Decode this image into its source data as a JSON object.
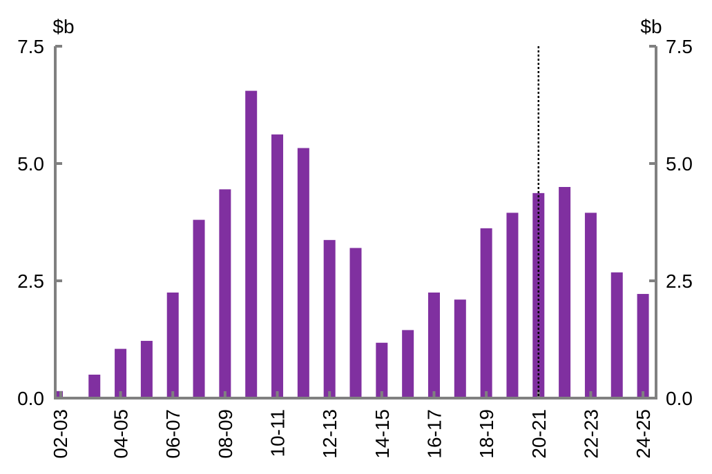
{
  "chart_data": {
    "type": "bar",
    "left_unit": "$b",
    "right_unit": "$b",
    "y_ticks": [
      "0.0",
      "2.5",
      "5.0",
      "7.5"
    ],
    "ylim": [
      0,
      7.5
    ],
    "categories": [
      "02-03",
      "03-04",
      "04-05",
      "05-06",
      "06-07",
      "07-08",
      "08-09",
      "09-10",
      "10-11",
      "11-12",
      "12-13",
      "13-14",
      "14-15",
      "15-16",
      "16-17",
      "17-18",
      "18-19",
      "19-20",
      "20-21",
      "21-22",
      "22-23",
      "23-24",
      "24-25"
    ],
    "x_tick_labels": [
      "02-03",
      "04-05",
      "06-07",
      "08-09",
      "10-11",
      "12-13",
      "14-15",
      "16-17",
      "18-19",
      "20-21",
      "22-23",
      "24-25"
    ],
    "values": [
      0.15,
      0.5,
      1.05,
      1.22,
      2.25,
      3.8,
      4.45,
      6.55,
      5.62,
      5.33,
      3.37,
      3.2,
      1.18,
      1.45,
      2.25,
      2.1,
      3.62,
      3.95,
      4.37,
      4.5,
      3.95,
      2.68,
      2.22
    ],
    "bar_color": "#8030A0",
    "axis_color": "#808080",
    "vline_category": "20-21",
    "grid": false,
    "legend": "none"
  }
}
